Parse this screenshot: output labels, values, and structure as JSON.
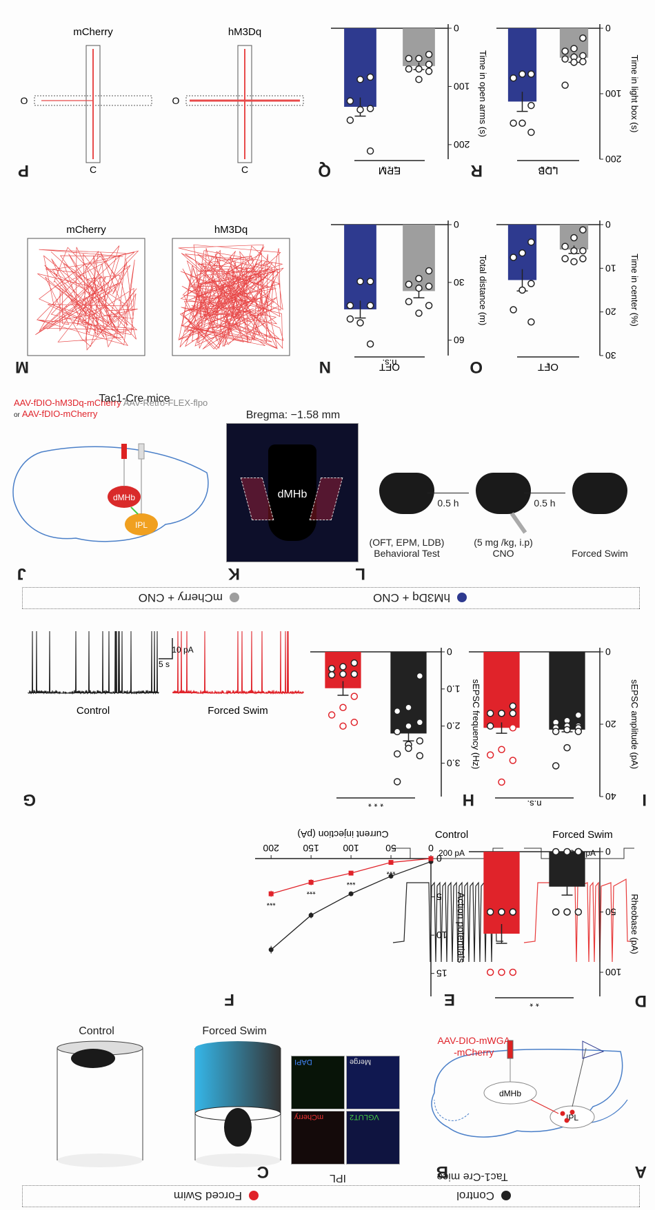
{
  "colors": {
    "control": "#222222",
    "forced_swim": "#e0232a",
    "mcherry": "#9e9e9e",
    "hm3dq": "#2e3a8f",
    "trace_red": "#e83a3a",
    "brain_outline": "#4a7fc8"
  },
  "legends": {
    "top": [
      {
        "label": "Control",
        "color": "#222222"
      },
      {
        "label": "Forced Swim",
        "color": "#e0232a"
      }
    ],
    "middle": [
      {
        "label": "mCherry + CNO",
        "color": "#9e9e9e"
      },
      {
        "label": "hM3Dq + CNO",
        "color": "#2e3a8f"
      }
    ]
  },
  "panels": {
    "A": {
      "label": "A",
      "title": "Tac1-Cre mice",
      "virus_line1": "AAV-DIO-mWGA",
      "virus_line2": "-mCherry",
      "region1": "dMHb",
      "region2": "IPL",
      "icons": [
        "brain-sagittal-icon",
        "syringe-icon",
        "electrode-amplifier-icon"
      ]
    },
    "B": {
      "label": "B",
      "title": "IPL",
      "channels": [
        "DAPI",
        "Merge",
        "mCherry",
        "VGLUT2"
      ]
    },
    "C": {
      "label": "C",
      "conditions": [
        "Control",
        "Forced Swim"
      ],
      "icons": [
        "mouse-in-cylinder-icon",
        "mouse-swimming-icon"
      ]
    },
    "D": {
      "label": "D",
      "traces": [
        {
          "name": "Control",
          "step_label": "200 pA"
        },
        {
          "name": "Forced Swim",
          "step_label": "200 pA"
        }
      ]
    },
    "E": {
      "label": "E"
    },
    "F": {
      "label": "F"
    },
    "G": {
      "label": "G",
      "traces": [
        "Control",
        "Forced Swim"
      ],
      "scale_x": "5 s",
      "scale_y": "10 pA"
    },
    "H": {
      "label": "H"
    },
    "I": {
      "label": "I"
    },
    "J": {
      "label": "J",
      "title": "Tac1-Cre mice",
      "virus_red_line1": "AAV-fDIO-hM3Dq-mCherry",
      "virus_red_line2_prefix": "or",
      "virus_red_line2": "AAV-fDIO-mCherry",
      "virus_gray": "AAV-Retro-FLEX-flpo",
      "region1": "dMHb",
      "region2": "IPL"
    },
    "K": {
      "label": "K",
      "title": "Bregma: −1.58 mm",
      "region": "dMHb"
    },
    "L": {
      "label": "L",
      "steps": [
        {
          "title": "Forced Swim",
          "sub": ""
        },
        {
          "title": "CNO",
          "sub": "(5 mg /kg, i.p)"
        },
        {
          "title": "Behavioral Test",
          "sub": "(OFT, EPM, LDB)"
        }
      ],
      "intervals": [
        "0.5 h",
        "0.5 h"
      ]
    },
    "M": {
      "label": "M",
      "conditions": [
        "mCherry",
        "hM3Dq"
      ]
    },
    "N": {
      "label": "N"
    },
    "O": {
      "label": "O"
    },
    "P": {
      "label": "P",
      "conditions": [
        "mCherry",
        "hM3Dq"
      ],
      "arm_open": "O",
      "arm_closed": "C"
    },
    "Q": {
      "label": "Q"
    },
    "R": {
      "label": "R"
    }
  },
  "chart_data": [
    {
      "id": "E",
      "type": "line",
      "title": "",
      "xlabel": "Current injection (pA)",
      "ylabel": "Action potentials",
      "x": [
        0,
        50,
        100,
        150,
        200
      ],
      "xticks": [
        "0",
        "50",
        "100",
        "150",
        "200"
      ],
      "yticks": [
        "0",
        "5",
        "10",
        "15"
      ],
      "ylim": [
        0,
        18
      ],
      "xlim": [
        0,
        220
      ],
      "series": [
        {
          "name": "Control",
          "color": "#222222",
          "marker": "circle",
          "values": [
            0.4,
            2.3,
            4.6,
            7.4,
            11.9
          ],
          "err": [
            0.1,
            0.2,
            0.3,
            0.4,
            0.5
          ]
        },
        {
          "name": "Forced Swim",
          "color": "#e0232a",
          "marker": "square",
          "values": [
            0.0,
            0.5,
            1.9,
            3.1,
            4.6
          ],
          "err": [
            0.05,
            0.2,
            0.3,
            0.4,
            0.4
          ]
        }
      ],
      "annotations": [
        "***",
        "***",
        "***",
        "***"
      ]
    },
    {
      "id": "F",
      "type": "bar",
      "ylabel": "Rheobase (pA)",
      "yticks": [
        "0",
        "50",
        "100"
      ],
      "ylim": [
        0,
        120
      ],
      "categories": [
        "Control",
        "Forced Swim"
      ],
      "values": [
        29,
        68
      ],
      "err": [
        7,
        8
      ],
      "colors": [
        "#222222",
        "#e0232a"
      ],
      "points": [
        [
          0,
          0,
          0,
          0,
          50,
          50,
          50,
          50,
          50
        ],
        [
          50,
          50,
          50,
          50,
          50,
          100,
          100,
          100
        ]
      ],
      "significance": "* *"
    },
    {
      "id": "H",
      "type": "bar",
      "ylabel": "sEPSC frequency (Hz)",
      "yticks": [
        "0",
        "1.0",
        "2.0",
        "3.0"
      ],
      "ylim": [
        0,
        3.9
      ],
      "categories": [
        "Control",
        "Forced Swim"
      ],
      "values": [
        2.2,
        0.98
      ],
      "err": [
        0.2,
        0.19
      ],
      "colors": [
        "#222222",
        "#e0232a"
      ],
      "points": [
        [
          0.65,
          1.5,
          1.6,
          1.9,
          2.0,
          2.15,
          2.4,
          2.5,
          2.75,
          2.8,
          2.6,
          3.5
        ],
        [
          0.3,
          0.4,
          0.45,
          0.6,
          0.6,
          0.62,
          1.2,
          1.5,
          1.7,
          1.9,
          2.0
        ]
      ],
      "significance": "* * *"
    },
    {
      "id": "I",
      "type": "bar",
      "ylabel": "sEPSC amplitude (pA)",
      "yticks": [
        "0",
        "20",
        "40"
      ],
      "ylim": [
        0,
        40
      ],
      "categories": [
        "Control",
        "Forced Swim"
      ],
      "values": [
        21.5,
        21.0
      ],
      "err": [
        0.6,
        1.5
      ],
      "colors": [
        "#222222",
        "#e0232a"
      ],
      "points": [
        [
          17.5,
          19,
          19.5,
          20.5,
          20.5,
          21,
          21,
          21.5,
          22,
          22,
          26.5,
          31.5
        ],
        [
          15,
          17,
          17,
          17,
          17,
          20.5,
          21,
          27,
          28.5,
          30,
          36
        ]
      ],
      "significance": "n.s."
    },
    {
      "id": "N",
      "type": "bar",
      "title": "OFT",
      "ylabel": "Total distance (m)",
      "yticks": [
        "0",
        "30",
        "60"
      ],
      "ylim": [
        0,
        68
      ],
      "categories": [
        "mCherry + CNO",
        "hM3Dq + CNO"
      ],
      "values": [
        34.5,
        44
      ],
      "err": [
        3.5,
        4.5
      ],
      "colors": [
        "#9e9e9e",
        "#2e3a8f"
      ],
      "points": [
        [
          24,
          28,
          31,
          32,
          33,
          40,
          42,
          46
        ],
        [
          29.5,
          29.5,
          42,
          42,
          51,
          49,
          62
        ]
      ],
      "significance": "n.s."
    },
    {
      "id": "O",
      "type": "bar",
      "title": "OFT",
      "ylabel": "Time in center (%)",
      "yticks": [
        "0",
        "10",
        "20",
        "30"
      ],
      "ylim": [
        0,
        30
      ],
      "categories": [
        "mCherry + CNO",
        "hM3Dq + CNO"
      ],
      "values": [
        5.7,
        12.7
      ],
      "err": [
        0.9,
        2.5
      ],
      "colors": [
        "#9e9e9e",
        "#2e3a8f"
      ],
      "points": [
        [
          1.2,
          3.0,
          5.0,
          6.0,
          6.0,
          7.8,
          7.8,
          8.5
        ],
        [
          4.0,
          6.5,
          7.5,
          13.5,
          15.0,
          19.5,
          22.3
        ]
      ],
      "significance": "*"
    },
    {
      "id": "Q",
      "type": "bar",
      "title": "EPM",
      "ylabel": "Time in open arms (s)",
      "yticks": [
        "0",
        "100",
        "200"
      ],
      "ylim": [
        0,
        225
      ],
      "categories": [
        "mCherry + CNO",
        "hM3Dq + CNO"
      ],
      "values": [
        65,
        135
      ],
      "err": [
        6,
        16
      ],
      "colors": [
        "#9e9e9e",
        "#2e3a8f"
      ],
      "points": [
        [
          45,
          52,
          52,
          62,
          70,
          70,
          74,
          88
        ],
        [
          84,
          88,
          125,
          138,
          140,
          158,
          211
        ]
      ],
      "significance": "* * *"
    },
    {
      "id": "R",
      "type": "bar",
      "title": "LDB",
      "ylabel": "Time in light box (s)",
      "yticks": [
        "0",
        "100",
        "200"
      ],
      "ylim": [
        0,
        200
      ],
      "categories": [
        "mCherry + CNO",
        "hM3Dq + CNO"
      ],
      "values": [
        45,
        112
      ],
      "err": [
        7,
        15
      ],
      "colors": [
        "#9e9e9e",
        "#2e3a8f"
      ],
      "points": [
        [
          15,
          31,
          35,
          42,
          44,
          47,
          51,
          52,
          87
        ],
        [
          70,
          70,
          76,
          118,
          145,
          145,
          159
        ]
      ],
      "significance": "* * *"
    }
  ]
}
